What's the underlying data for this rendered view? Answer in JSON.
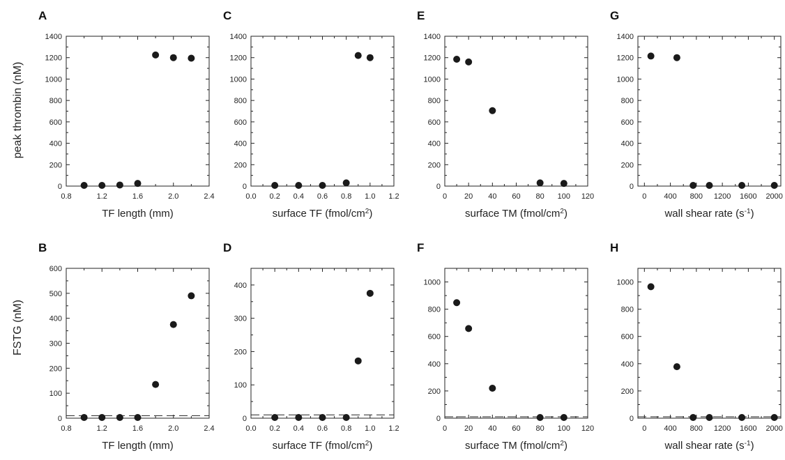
{
  "ylabels": {
    "top": "peak thrombin (nM)",
    "bottom": "FSTG (nM)"
  },
  "chart_data": [
    {
      "id": "A",
      "type": "scatter",
      "letter": "A",
      "xlabel": "TF length (mm)",
      "ylabel": "peak thrombin (nM)",
      "xlim": [
        0.8,
        2.4
      ],
      "ylim": [
        0,
        1400
      ],
      "xticks": [
        "0.8",
        "1.2",
        "1.6",
        "2.0",
        "2.4"
      ],
      "yticks": [
        "0",
        "200",
        "400",
        "600",
        "800",
        "1000",
        "1200",
        "1400"
      ],
      "x": [
        1.0,
        1.2,
        1.4,
        1.6,
        1.8,
        2.0,
        2.2
      ],
      "y": [
        5,
        5,
        10,
        25,
        1225,
        1200,
        1195
      ]
    },
    {
      "id": "C",
      "type": "scatter",
      "letter": "C",
      "xlabel": "surface TF (fmol/cm",
      "xlabel_sup": "2",
      "xlabel_end": ")",
      "ylabel": "",
      "xlim": [
        0,
        1.2
      ],
      "ylim": [
        0,
        1400
      ],
      "xticks": [
        "0.0",
        "0.2",
        "0.4",
        "0.6",
        "0.8",
        "1.0",
        "1.2"
      ],
      "yticks": [
        "0",
        "200",
        "400",
        "600",
        "800",
        "1000",
        "1200",
        "1400"
      ],
      "x": [
        0.2,
        0.4,
        0.6,
        0.8,
        0.9,
        1.0
      ],
      "y": [
        0,
        0,
        5,
        30,
        1220,
        1200
      ]
    },
    {
      "id": "E",
      "type": "scatter",
      "letter": "E",
      "xlabel": "surface TM (fmol/cm",
      "xlabel_sup": "2",
      "xlabel_end": ")",
      "ylabel": "",
      "xlim": [
        0,
        120
      ],
      "ylim": [
        0,
        1400
      ],
      "xticks": [
        "0",
        "20",
        "40",
        "60",
        "80",
        "100",
        "120"
      ],
      "yticks": [
        "0",
        "200",
        "400",
        "600",
        "800",
        "1000",
        "1200",
        "1400"
      ],
      "x": [
        10,
        20,
        40,
        80,
        100
      ],
      "y": [
        1185,
        1160,
        705,
        30,
        25
      ]
    },
    {
      "id": "G",
      "type": "scatter",
      "letter": "G",
      "xlabel": "wall shear rate (s",
      "xlabel_sup": "-1",
      "xlabel_end": ")",
      "ylabel": "",
      "xlim": [
        -100,
        2100
      ],
      "ylim": [
        0,
        1400
      ],
      "xticks": [
        "0",
        "400",
        "800",
        "1200",
        "1600",
        "2000"
      ],
      "yticks": [
        "0",
        "200",
        "400",
        "600",
        "800",
        "1000",
        "1200",
        "1400"
      ],
      "x": [
        100,
        500,
        750,
        1000,
        1500,
        2000
      ],
      "y": [
        1215,
        1200,
        5,
        0,
        0,
        0
      ]
    },
    {
      "id": "B",
      "type": "scatter",
      "letter": "B",
      "xlabel": "TF length (mm)",
      "ylabel": "FSTG (nM)",
      "xlim": [
        0.8,
        2.4
      ],
      "ylim": [
        0,
        600
      ],
      "xticks": [
        "0.8",
        "1.2",
        "1.6",
        "2.0",
        "2.4"
      ],
      "yticks": [
        "0",
        "100",
        "200",
        "300",
        "400",
        "500",
        "600"
      ],
      "x": [
        1.0,
        1.2,
        1.4,
        1.6,
        1.8,
        2.0,
        2.2
      ],
      "y": [
        0,
        0,
        0,
        0,
        135,
        375,
        490
      ],
      "reference_line": 10
    },
    {
      "id": "D",
      "type": "scatter",
      "letter": "D",
      "xlabel": "surface TF (fmol/cm",
      "xlabel_sup": "2",
      "xlabel_end": ")",
      "ylabel": "",
      "xlim": [
        0,
        1.2
      ],
      "ylim": [
        0,
        450
      ],
      "xticks": [
        "0.0",
        "0.2",
        "0.4",
        "0.6",
        "0.8",
        "1.0",
        "1.2"
      ],
      "yticks": [
        "0",
        "100",
        "200",
        "300",
        "400"
      ],
      "x": [
        0.2,
        0.4,
        0.6,
        0.8,
        0.9,
        1.0
      ],
      "y": [
        0,
        0,
        0,
        0,
        172,
        375
      ],
      "reference_line": 10
    },
    {
      "id": "F",
      "type": "scatter",
      "letter": "F",
      "xlabel": "surface TM (fmol/cm",
      "xlabel_sup": "2",
      "xlabel_end": ")",
      "ylabel": "",
      "xlim": [
        0,
        120
      ],
      "ylim": [
        0,
        1100
      ],
      "xticks": [
        "0",
        "20",
        "40",
        "60",
        "80",
        "100",
        "120"
      ],
      "yticks": [
        "0",
        "200",
        "400",
        "600",
        "800",
        "1000"
      ],
      "x": [
        10,
        20,
        40,
        80,
        100
      ],
      "y": [
        848,
        658,
        220,
        5,
        0
      ],
      "reference_line": 10
    },
    {
      "id": "H",
      "type": "scatter",
      "letter": "H",
      "xlabel": "wall shear rate (s",
      "xlabel_sup": "-1",
      "xlabel_end": ")",
      "ylabel": "",
      "xlim": [
        -100,
        2100
      ],
      "ylim": [
        0,
        1100
      ],
      "xticks": [
        "0",
        "400",
        "800",
        "1200",
        "1600",
        "2000"
      ],
      "yticks": [
        "0",
        "200",
        "400",
        "600",
        "800",
        "1000"
      ],
      "x": [
        100,
        500,
        750,
        1000,
        1500,
        2000
      ],
      "y": [
        965,
        378,
        0,
        0,
        0,
        0
      ],
      "reference_line": 10
    }
  ]
}
